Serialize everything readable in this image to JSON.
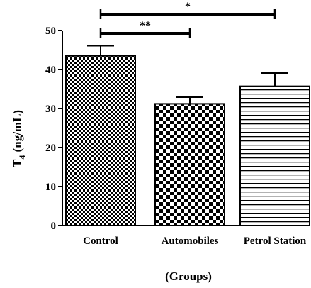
{
  "chart_data": {
    "type": "bar",
    "categories": [
      "Control",
      "Automobiles",
      "Petrol Station"
    ],
    "values": [
      43.5,
      31.2,
      35.7
    ],
    "error_upper": [
      46.1,
      32.9,
      39.1
    ],
    "patterns": [
      "checker-fine",
      "checker-coarse",
      "horizontal-lines"
    ],
    "xlabel": "(Groups)",
    "ylabel_main": "T",
    "ylabel_sub": "4",
    "ylabel_unit": " (ng/mL)",
    "ylim": [
      0,
      50
    ],
    "yticks": [
      0,
      10,
      20,
      30,
      40,
      50
    ],
    "grid": false,
    "significance": [
      {
        "from": "Control",
        "to": "Automobiles",
        "label": "**"
      },
      {
        "from": "Control",
        "to": "Petrol Station",
        "label": "*"
      }
    ]
  }
}
